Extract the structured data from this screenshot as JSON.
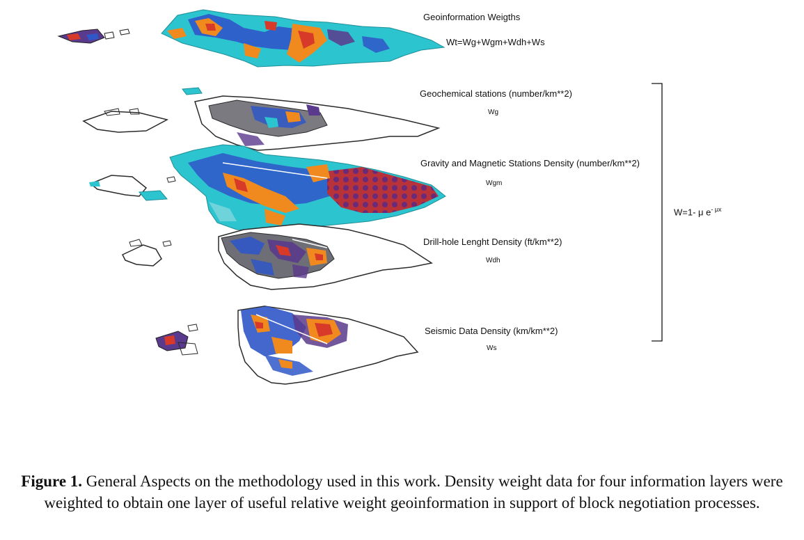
{
  "layers": [
    {
      "title": "Geoinformation Weigths",
      "formula": "Wt=Wg+Wgm+Wdh+Ws"
    },
    {
      "title": "Geochemical stations (number/km**2)",
      "symbol": "Wg"
    },
    {
      "title": "Gravity and Magnetic Stations Density (number/km**2)",
      "symbol": "Wgm"
    },
    {
      "title": "Drill-hole Lenght Density (ft/km**2)",
      "symbol": "Wdh"
    },
    {
      "title": "Seismic Data Density (km/km**2)",
      "symbol": "Ws"
    }
  ],
  "weight_equation": {
    "base": "W=1- μ e",
    "exponent": "- μx"
  },
  "caption": {
    "label": "Figure 1.",
    "text": " General Aspects on the methodology used in this work. Density weight data for four information layers were weighted to obtain one layer of useful relative weight geoinformation in support of block negotiation processes."
  },
  "colors": {
    "cyan": "#2cc4cf",
    "blue": "#2f57c8",
    "orange": "#f08a1e",
    "red": "#d83a2a",
    "purple": "#5a3a8c",
    "outline": "#2a2a2a"
  }
}
